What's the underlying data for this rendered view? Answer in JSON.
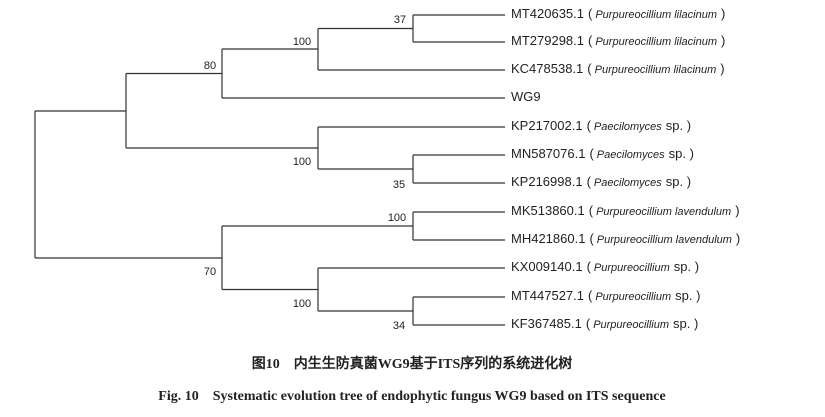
{
  "tree": {
    "leaves": [
      {
        "accession": "MT420635.1",
        "pre": "(",
        "species": "Purpureocillium lilacinum",
        "post": ")"
      },
      {
        "accession": "MT279298.1",
        "pre": "(",
        "species": "Purpureocillium lilacinum",
        "post": ")"
      },
      {
        "accession": "KC478538.1",
        "pre": "(",
        "species": "Purpureocillium lilacinum",
        "post": ")"
      },
      {
        "accession": "WG9"
      },
      {
        "accession": "KP217002.1",
        "pre": "(",
        "species": "Paecilomyces",
        "post": "sp. )"
      },
      {
        "accession": "MN587076.1",
        "pre": "(",
        "species": "Paecilomyces",
        "post": "sp. )"
      },
      {
        "accession": "KP216998.1",
        "pre": "(",
        "species": "Paecilomyces",
        "post": "sp. )"
      },
      {
        "accession": "MK513860.1",
        "pre": "(",
        "species": "Purpureocillium lavendulum",
        "post": ")"
      },
      {
        "accession": "MH421860.1",
        "pre": "(",
        "species": "Purpureocillium lavendulum",
        "post": ")"
      },
      {
        "accession": "KX009140.1",
        "pre": "(",
        "species": "Purpureocillium",
        "post": "sp. )"
      },
      {
        "accession": "MT447527.1",
        "pre": "(",
        "species": "Purpureocillium",
        "post": "sp. )"
      },
      {
        "accession": "KF367485.1",
        "pre": "(",
        "species": "Purpureocillium",
        "post": "sp. )"
      }
    ],
    "support": [
      37,
      100,
      80,
      100,
      35,
      100,
      70,
      100,
      34
    ]
  },
  "caption": {
    "cn_label": "图10",
    "cn_text": "内生生防真菌WG9基于ITS序列的系统进化树",
    "en_label": "Fig. 10",
    "en_text": "Systematic evolution tree of endophytic fungus WG9 based on ITS sequence"
  }
}
